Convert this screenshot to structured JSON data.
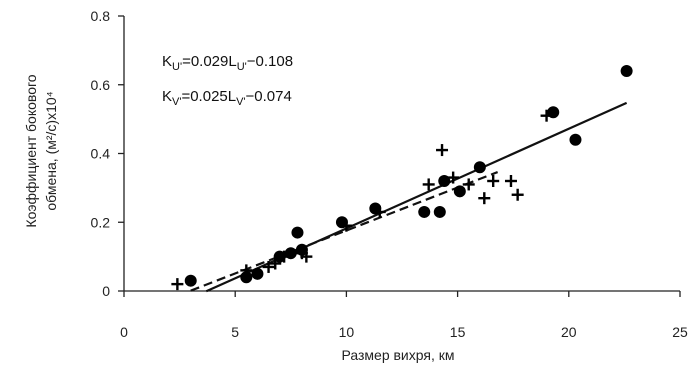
{
  "chart_data": {
    "type": "scatter",
    "xlabel": "Размер вихря, км",
    "ylabel_line1": "Коэффициент бокового",
    "ylabel_line2": "обмена, (м²/с)х10⁴",
    "xlim": [
      0,
      25
    ],
    "ylim": [
      0,
      0.8
    ],
    "x_ticks": [
      0,
      5,
      10,
      15,
      20,
      25
    ],
    "y_ticks": [
      0,
      0.2,
      0.4,
      0.6,
      0.8
    ],
    "grid": false,
    "annotations": {
      "eq_u": {
        "k": "K",
        "k_sub": "U'",
        "mid": "=0.029L",
        "l_sub": "U'",
        "tail": "−0.108"
      },
      "eq_v": {
        "k": "K",
        "k_sub": "V'",
        "mid": "=0.025L",
        "l_sub": "V'",
        "tail": "−0.074"
      }
    },
    "series": [
      {
        "marker": "circle",
        "points": [
          [
            3.0,
            0.03
          ],
          [
            5.5,
            0.04
          ],
          [
            6.0,
            0.05
          ],
          [
            7.0,
            0.1
          ],
          [
            7.5,
            0.11
          ],
          [
            7.8,
            0.17
          ],
          [
            8.0,
            0.12
          ],
          [
            9.8,
            0.2
          ],
          [
            11.3,
            0.24
          ],
          [
            13.5,
            0.23
          ],
          [
            14.2,
            0.23
          ],
          [
            14.4,
            0.32
          ],
          [
            15.1,
            0.29
          ],
          [
            16.0,
            0.36
          ],
          [
            19.3,
            0.52
          ],
          [
            20.3,
            0.44
          ],
          [
            22.6,
            0.64
          ]
        ],
        "fit": {
          "slope": 0.029,
          "intercept": -0.108,
          "x_range": [
            3.7,
            22.6
          ],
          "style": "solid"
        }
      },
      {
        "marker": "plus",
        "points": [
          [
            2.4,
            0.02
          ],
          [
            5.5,
            0.06
          ],
          [
            6.5,
            0.07
          ],
          [
            6.8,
            0.08
          ],
          [
            7.2,
            0.1
          ],
          [
            8.0,
            0.11
          ],
          [
            8.2,
            0.1
          ],
          [
            10.0,
            0.19
          ],
          [
            11.5,
            0.23
          ],
          [
            13.7,
            0.31
          ],
          [
            14.3,
            0.41
          ],
          [
            14.8,
            0.33
          ],
          [
            15.5,
            0.31
          ],
          [
            16.2,
            0.27
          ],
          [
            16.6,
            0.32
          ],
          [
            17.4,
            0.32
          ],
          [
            17.7,
            0.28
          ],
          [
            19.0,
            0.51
          ]
        ],
        "fit": {
          "slope": 0.025,
          "intercept": -0.074,
          "x_range": [
            3.0,
            16.8
          ],
          "style": "dashed"
        }
      }
    ]
  }
}
